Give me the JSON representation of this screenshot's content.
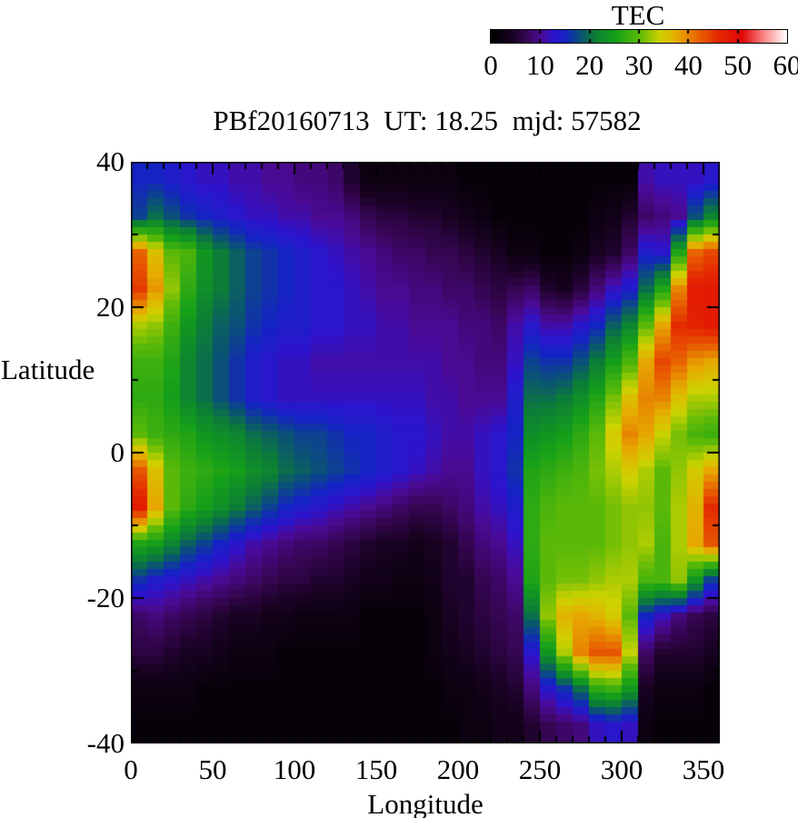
{
  "colorbar": {
    "title": "TEC",
    "tick_labels": [
      "0",
      "10",
      "20",
      "30",
      "40",
      "50",
      "60"
    ],
    "min": 0,
    "max": 60
  },
  "plot": {
    "title": "PBf20160713  UT: 18.25  mjd: 57582",
    "xlabel": "Longitude",
    "ylabel": "Latitude",
    "x_tick_labels": [
      "0",
      "50",
      "100",
      "150",
      "200",
      "250",
      "300",
      "350"
    ],
    "y_tick_labels": [
      "40",
      "20",
      "0",
      "-20",
      "-40"
    ]
  },
  "chart_data": {
    "type": "heatmap",
    "title": "PBf20160713  UT: 18.25  mjd: 57582",
    "xlabel": "Longitude",
    "ylabel": "Latitude",
    "xlim": [
      0,
      360
    ],
    "ylim": [
      -40,
      40
    ],
    "x_ticks": [
      0,
      50,
      100,
      150,
      200,
      250,
      300,
      350
    ],
    "y_ticks": [
      -40,
      -20,
      0,
      20,
      40
    ],
    "minor_tick_step_lon": 10,
    "minor_tick_step_lat": 10,
    "colorbar_label": "TEC",
    "zlim": [
      0,
      60
    ],
    "colorbar_ticks": [
      0,
      10,
      20,
      30,
      40,
      50,
      60
    ],
    "palette_stops": [
      [
        0.0,
        0,
        0,
        0
      ],
      [
        0.07,
        25,
        2,
        35
      ],
      [
        0.12,
        55,
        6,
        85
      ],
      [
        0.17,
        75,
        10,
        150
      ],
      [
        0.21,
        45,
        20,
        205
      ],
      [
        0.25,
        20,
        35,
        195
      ],
      [
        0.3,
        10,
        80,
        120
      ],
      [
        0.35,
        12,
        125,
        55
      ],
      [
        0.42,
        20,
        160,
        25
      ],
      [
        0.5,
        90,
        185,
        8
      ],
      [
        0.57,
        205,
        210,
        0
      ],
      [
        0.63,
        230,
        170,
        0
      ],
      [
        0.7,
        232,
        100,
        0
      ],
      [
        0.77,
        228,
        40,
        0
      ],
      [
        0.85,
        225,
        5,
        5
      ],
      [
        0.92,
        250,
        130,
        130
      ],
      [
        1.0,
        255,
        255,
        255
      ]
    ],
    "grid": {
      "lon_centers": [
        5,
        15,
        25,
        35,
        45,
        55,
        65,
        75,
        85,
        95,
        105,
        115,
        125,
        135,
        145,
        155,
        165,
        175,
        185,
        195,
        205,
        215,
        225,
        235,
        245,
        255,
        265,
        275,
        285,
        295,
        305,
        315,
        325,
        335,
        345,
        355
      ],
      "lat_centers": [
        37.5,
        32.5,
        27.5,
        22.5,
        17.5,
        12.5,
        7.5,
        2.5,
        -2.5,
        -7.5,
        -12.5,
        -17.5,
        -22.5,
        -27.5,
        -32.5,
        -37.5
      ],
      "tec_values": [
        [
          15,
          15,
          14,
          13,
          12,
          12,
          11,
          11,
          10,
          10,
          9,
          9,
          8,
          5,
          2,
          2,
          2,
          2,
          2,
          2,
          1,
          1,
          1,
          1,
          1,
          1,
          1,
          1,
          1,
          1,
          1,
          11,
          12,
          12,
          12,
          13
        ],
        [
          17,
          20,
          18,
          16,
          15,
          14,
          13,
          12,
          12,
          11,
          11,
          10,
          10,
          9,
          7,
          6,
          6,
          5,
          5,
          4,
          3,
          2,
          1,
          1,
          1,
          1,
          1,
          1,
          2,
          3,
          5,
          8,
          9,
          10,
          18,
          22
        ],
        [
          42,
          36,
          30,
          29,
          24,
          21,
          19,
          17,
          16,
          15,
          14,
          13,
          12,
          11,
          10,
          9,
          8,
          8,
          7,
          7,
          6,
          5,
          4,
          2,
          2,
          1,
          1,
          2,
          4,
          5,
          8,
          14,
          13,
          26,
          42,
          44
        ],
        [
          45,
          39,
          32,
          27,
          23,
          21,
          19,
          17,
          16,
          15,
          14,
          13,
          13,
          12,
          11,
          10,
          10,
          9,
          9,
          8,
          8,
          7,
          6,
          7,
          8,
          5,
          4,
          6,
          9,
          12,
          14,
          20,
          26,
          40,
          48,
          48
        ],
        [
          33,
          32,
          28,
          24,
          21,
          19,
          18,
          16,
          15,
          14,
          14,
          13,
          13,
          12,
          12,
          11,
          11,
          10,
          10,
          10,
          9,
          9,
          8,
          11,
          13,
          11,
          11,
          13,
          15,
          19,
          22,
          30,
          38,
          46,
          47,
          48
        ],
        [
          28,
          28,
          26,
          22,
          20,
          18,
          16,
          14,
          13,
          12,
          12,
          11,
          11,
          11,
          11,
          11,
          11,
          11,
          11,
          10,
          10,
          9,
          9,
          12,
          17,
          16,
          16,
          18,
          21,
          25,
          29,
          38,
          44,
          42,
          39,
          38
        ],
        [
          27,
          27,
          25,
          22,
          20,
          18,
          16,
          14,
          13,
          12,
          12,
          12,
          12,
          12,
          12,
          12,
          12,
          12,
          11,
          11,
          10,
          10,
          10,
          14,
          20,
          20,
          21,
          23,
          26,
          31,
          36,
          40,
          40,
          36,
          33,
          33
        ],
        [
          30,
          28,
          27,
          26,
          24,
          23,
          22,
          20,
          19,
          18,
          17,
          17,
          16,
          15,
          15,
          14,
          13,
          13,
          12,
          11,
          11,
          12,
          13,
          15,
          23,
          24,
          25,
          27,
          30,
          35,
          40,
          38,
          34,
          31,
          29,
          28
        ],
        [
          43,
          36,
          30,
          28,
          27,
          26,
          25,
          23,
          22,
          20,
          19,
          18,
          17,
          16,
          15,
          14,
          13,
          12,
          11,
          10,
          10,
          12,
          13,
          16,
          26,
          27,
          28,
          29,
          31,
          33,
          35,
          33,
          30,
          32,
          35,
          38
        ],
        [
          48,
          38,
          30,
          27,
          25,
          23,
          21,
          19,
          17,
          15,
          14,
          13,
          12,
          11,
          10,
          9,
          8,
          7,
          7,
          8,
          9,
          11,
          12,
          14,
          27,
          29,
          30,
          30,
          30,
          31,
          32,
          32,
          30,
          33,
          37,
          46
        ],
        [
          26,
          25,
          22,
          19,
          17,
          15,
          13,
          11,
          10,
          9,
          8,
          8,
          7,
          6,
          5,
          4,
          4,
          3,
          4,
          5,
          7,
          9,
          10,
          12,
          27,
          30,
          30,
          30,
          30,
          31,
          32,
          33,
          29,
          33,
          38,
          43
        ],
        [
          16,
          14,
          13,
          12,
          11,
          10,
          9,
          8,
          7,
          6,
          6,
          5,
          5,
          4,
          3,
          3,
          2,
          2,
          3,
          5,
          5,
          7,
          8,
          10,
          26,
          30,
          31,
          31,
          32,
          33,
          33,
          29,
          29,
          32,
          24,
          17
        ],
        [
          8,
          9,
          8,
          7,
          6,
          5,
          4,
          4,
          3,
          3,
          2,
          2,
          2,
          2,
          1,
          1,
          1,
          1,
          2,
          4,
          5,
          6,
          7,
          8,
          20,
          32,
          37,
          38,
          37,
          35,
          30,
          15,
          12,
          9,
          7,
          6
        ],
        [
          6,
          6,
          5,
          4,
          4,
          3,
          2,
          2,
          2,
          1,
          1,
          1,
          1,
          1,
          1,
          1,
          1,
          1,
          2,
          3,
          4,
          5,
          6,
          7,
          13,
          24,
          33,
          40,
          43,
          43,
          34,
          8,
          5,
          5,
          5,
          4
        ],
        [
          2,
          2,
          2,
          2,
          1,
          1,
          1,
          1,
          1,
          1,
          1,
          1,
          1,
          1,
          1,
          1,
          1,
          1,
          1,
          2,
          2,
          3,
          4,
          5,
          9,
          13,
          16,
          20,
          27,
          28,
          24,
          4,
          2,
          2,
          2,
          1
        ],
        [
          1,
          1,
          1,
          1,
          1,
          1,
          1,
          1,
          1,
          1,
          1,
          1,
          1,
          1,
          1,
          1,
          1,
          1,
          1,
          1,
          2,
          2,
          3,
          3,
          5,
          7,
          8,
          9,
          12,
          13,
          12,
          2,
          1,
          1,
          1,
          1
        ]
      ]
    }
  }
}
